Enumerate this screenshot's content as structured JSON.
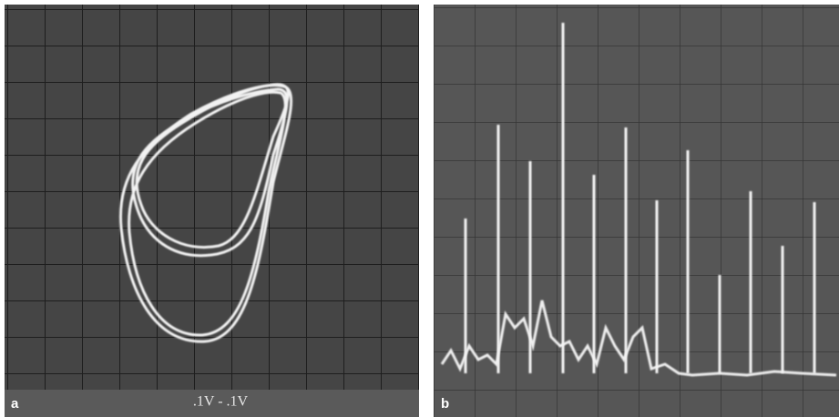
{
  "panels": [
    {
      "label": "a",
      "caption": ".1V - .1V"
    },
    {
      "label": "b"
    }
  ]
}
